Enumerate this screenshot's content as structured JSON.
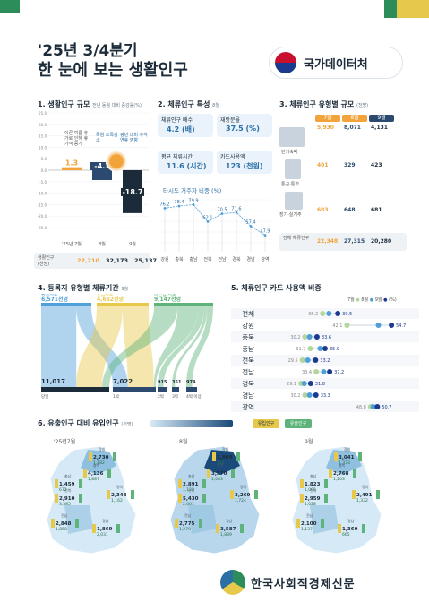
{
  "header": {
    "subtitle": "'25년 3/4분기",
    "title": "한 눈에 보는 생활인구",
    "agency": "국가데이터처"
  },
  "section1": {
    "title": "1. 생활인구 규모",
    "note": "전년 동월 대비 증감률(%)",
    "ann": [
      "이른 여름 휴가로 인해 휴가객 증가",
      "폭염 소득감소",
      "평년 대비 추석 연휴 영향"
    ],
    "rowlabel": "생활인구",
    "rowunit": "(천명)"
  },
  "section2": {
    "title": "2. 체류인구 특성",
    "note": "8월",
    "boxes": [
      {
        "label": "체류인구 배수",
        "value": "4.2 (배)"
      },
      {
        "label": "재방문율",
        "value": "37.5 (%)"
      },
      {
        "label": "평균 체류시간",
        "value": "11.6 (시간)"
      },
      {
        "label": "카드사용액",
        "value": "123 (천원)"
      }
    ],
    "sub": "타시도 거주자 비중 (%)"
  },
  "section3": {
    "title": "3. 체류인구 유형별 규모",
    "note": "(천명)",
    "headers": [
      "7월",
      "8월",
      "9월"
    ],
    "rows": [
      {
        "label": "단기숙박",
        "values": [
          "5,930",
          "8,071",
          "4,131"
        ]
      },
      {
        "label": "통근·통학",
        "values": [
          "401",
          "329",
          "423"
        ]
      },
      {
        "label": "장기·실거주",
        "values": [
          "683",
          "648",
          "681"
        ]
      },
      {
        "label": "전체 체류인구",
        "values": [
          "22,348",
          "27,315",
          "20,280"
        ]
      }
    ]
  },
  "section4": {
    "title": "4. 등록지 유형별 체류기간",
    "note": "9월",
    "sources": [
      {
        "label": "동일시도",
        "value": "6,571천명"
      },
      {
        "label": "인접시도",
        "value": "4,662천명"
      },
      {
        "label": "비인접 시도",
        "value": "9,147천명"
      }
    ],
    "targets": [
      {
        "label": "당일",
        "value": "11,017"
      },
      {
        "label": "1박",
        "value": "7,022"
      },
      {
        "label": "2박",
        "value": "915"
      },
      {
        "label": "3박",
        "value": "351"
      },
      {
        "label": "4박 이상",
        "value": "974"
      }
    ]
  },
  "section5": {
    "title": "5. 체류인구 카드 사용액 비중",
    "legend": [
      "7월",
      "8월",
      "9월",
      "(%)"
    ]
  },
  "section6": {
    "title": "6. 유출인구 대비 유입인구",
    "note": "(천명)",
    "legend_in": "유입인구",
    "legend_out": "유출인구",
    "months": [
      "'25년7월",
      "8월",
      "9월"
    ],
    "regions": [
      "전북",
      "경남",
      "강원",
      "충북",
      "충남",
      "전남",
      "경북"
    ],
    "m7": [
      {
        "in": "2,910",
        "out": "3,385"
      },
      {
        "in": "1,869",
        "out": "2,031"
      },
      {
        "in": "2,730",
        "out": "1,182"
      },
      {
        "in": "4,136",
        "out": "1,887"
      },
      {
        "in": "1,459",
        "out": "672"
      },
      {
        "in": "2,848",
        "out": "1,858"
      },
      {
        "in": "2,348",
        "out": "1,162"
      }
    ],
    "m8": [
      {
        "in": "5,430",
        "out": "2,001"
      },
      {
        "in": "3,587",
        "out": "1,839"
      },
      {
        "in": "1,809",
        "out": "742"
      },
      {
        "in": "3,570",
        "out": "1,083"
      },
      {
        "in": "2,891",
        "out": "1,122"
      },
      {
        "in": "2,775",
        "out": "1,279"
      },
      {
        "in": "3,269",
        "out": "1,724"
      }
    ],
    "m9": [
      {
        "in": "2,959",
        "out": "1,028"
      },
      {
        "in": "1,360",
        "out": "665"
      },
      {
        "in": "3,041",
        "out": "1,373"
      },
      {
        "in": "2,768",
        "out": "1,203"
      },
      {
        "in": "1,823",
        "out": "1,005"
      },
      {
        "in": "2,100",
        "out": "1,137"
      },
      {
        "in": "2,491",
        "out": "1,332"
      }
    ]
  },
  "footer": {
    "name": "한국사회적경제신문"
  },
  "chart_data": [
    {
      "type": "bar",
      "title": "1. 생활인구 규모",
      "ylabel": "전년 동월 대비 증감률(%)",
      "categories": [
        "'25년 7월",
        "8월",
        "9월"
      ],
      "values": [
        1.3,
        -4.3,
        -18.7
      ],
      "ylim": [
        -25,
        25
      ],
      "labels": [
        "생활인구 27,210",
        "32,173",
        "25,137"
      ]
    },
    {
      "type": "line",
      "title": "타시도 거주자 비중 (%)",
      "categories": [
        "강원",
        "충북",
        "충남",
        "전북",
        "전남",
        "경북",
        "경남",
        "광역"
      ],
      "values": [
        76.2,
        78.4,
        79.9,
        62.1,
        70.5,
        71.6,
        57.4,
        47.9
      ]
    },
    {
      "type": "scatter",
      "title": "5. 체류인구 카드 사용액 비중",
      "categories": [
        "전체",
        "강원",
        "충북",
        "충남",
        "전북",
        "전남",
        "경북",
        "경남",
        "광역"
      ],
      "series": [
        {
          "name": "7월",
          "values": [
            35.2,
            42.1,
            30.2,
            31.7,
            29.5,
            33.4,
            29.1,
            30.2,
            48.8
          ]
        },
        {
          "name": "8월",
          "values": [
            37.0,
            51.0,
            31.5,
            34.5,
            31.0,
            35.5,
            30.0,
            31.5,
            49.5
          ]
        },
        {
          "name": "9월",
          "values": [
            39.5,
            54.7,
            33.6,
            35.9,
            33.2,
            37.2,
            31.8,
            33.3,
            50.7
          ]
        }
      ],
      "xlim": [
        25,
        60
      ]
    }
  ]
}
